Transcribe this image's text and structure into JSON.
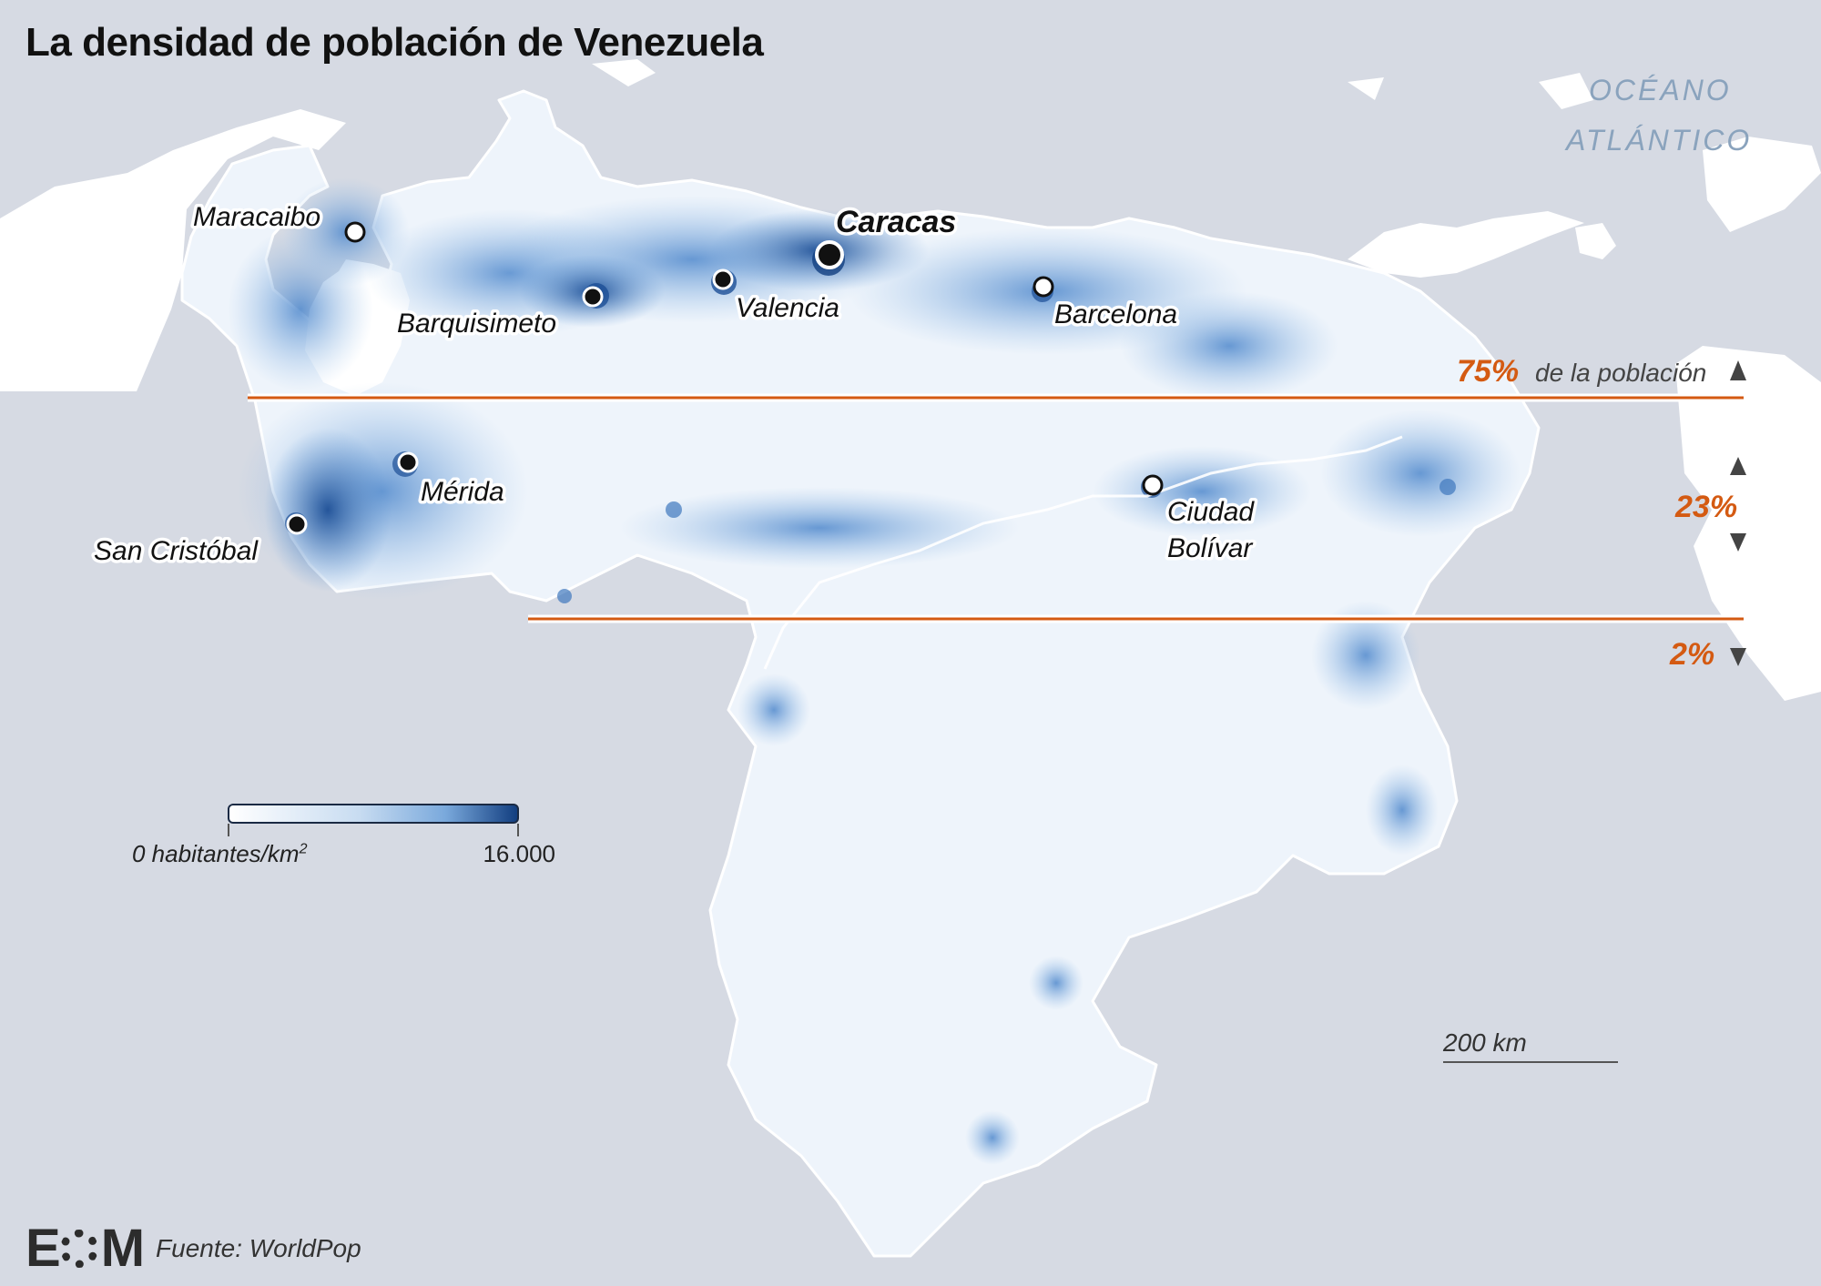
{
  "title": "La densidad de población de Venezuela",
  "ocean_label_line1": "OCÉANO",
  "ocean_label_line2": "ATLÁNTICO",
  "cities": [
    {
      "name": "Caracas",
      "capital": true
    },
    {
      "name": "Maracaibo"
    },
    {
      "name": "Barquisimeto"
    },
    {
      "name": "Valencia"
    },
    {
      "name": "Barcelona"
    },
    {
      "name": "Mérida"
    },
    {
      "name": "San Cristóbal"
    },
    {
      "name": "Ciudad"
    },
    {
      "name": "Bolívar"
    }
  ],
  "bands": {
    "north_pct": "75%",
    "north_note": "de la población",
    "middle_pct": "23%",
    "south_pct": "2%"
  },
  "legend": {
    "min_label": "0 habitantes/km",
    "min_sup": "2",
    "max_label": "16.000"
  },
  "scale_label": "200 km",
  "source": "Fuente: WorldPop",
  "logo": {
    "left": "E",
    "right": "M"
  },
  "colors": {
    "background": "#d6dae3",
    "land": "#ffffff",
    "density_low": "#eef4fb",
    "density_high": "#123e80",
    "band_line": "#d45a12"
  }
}
